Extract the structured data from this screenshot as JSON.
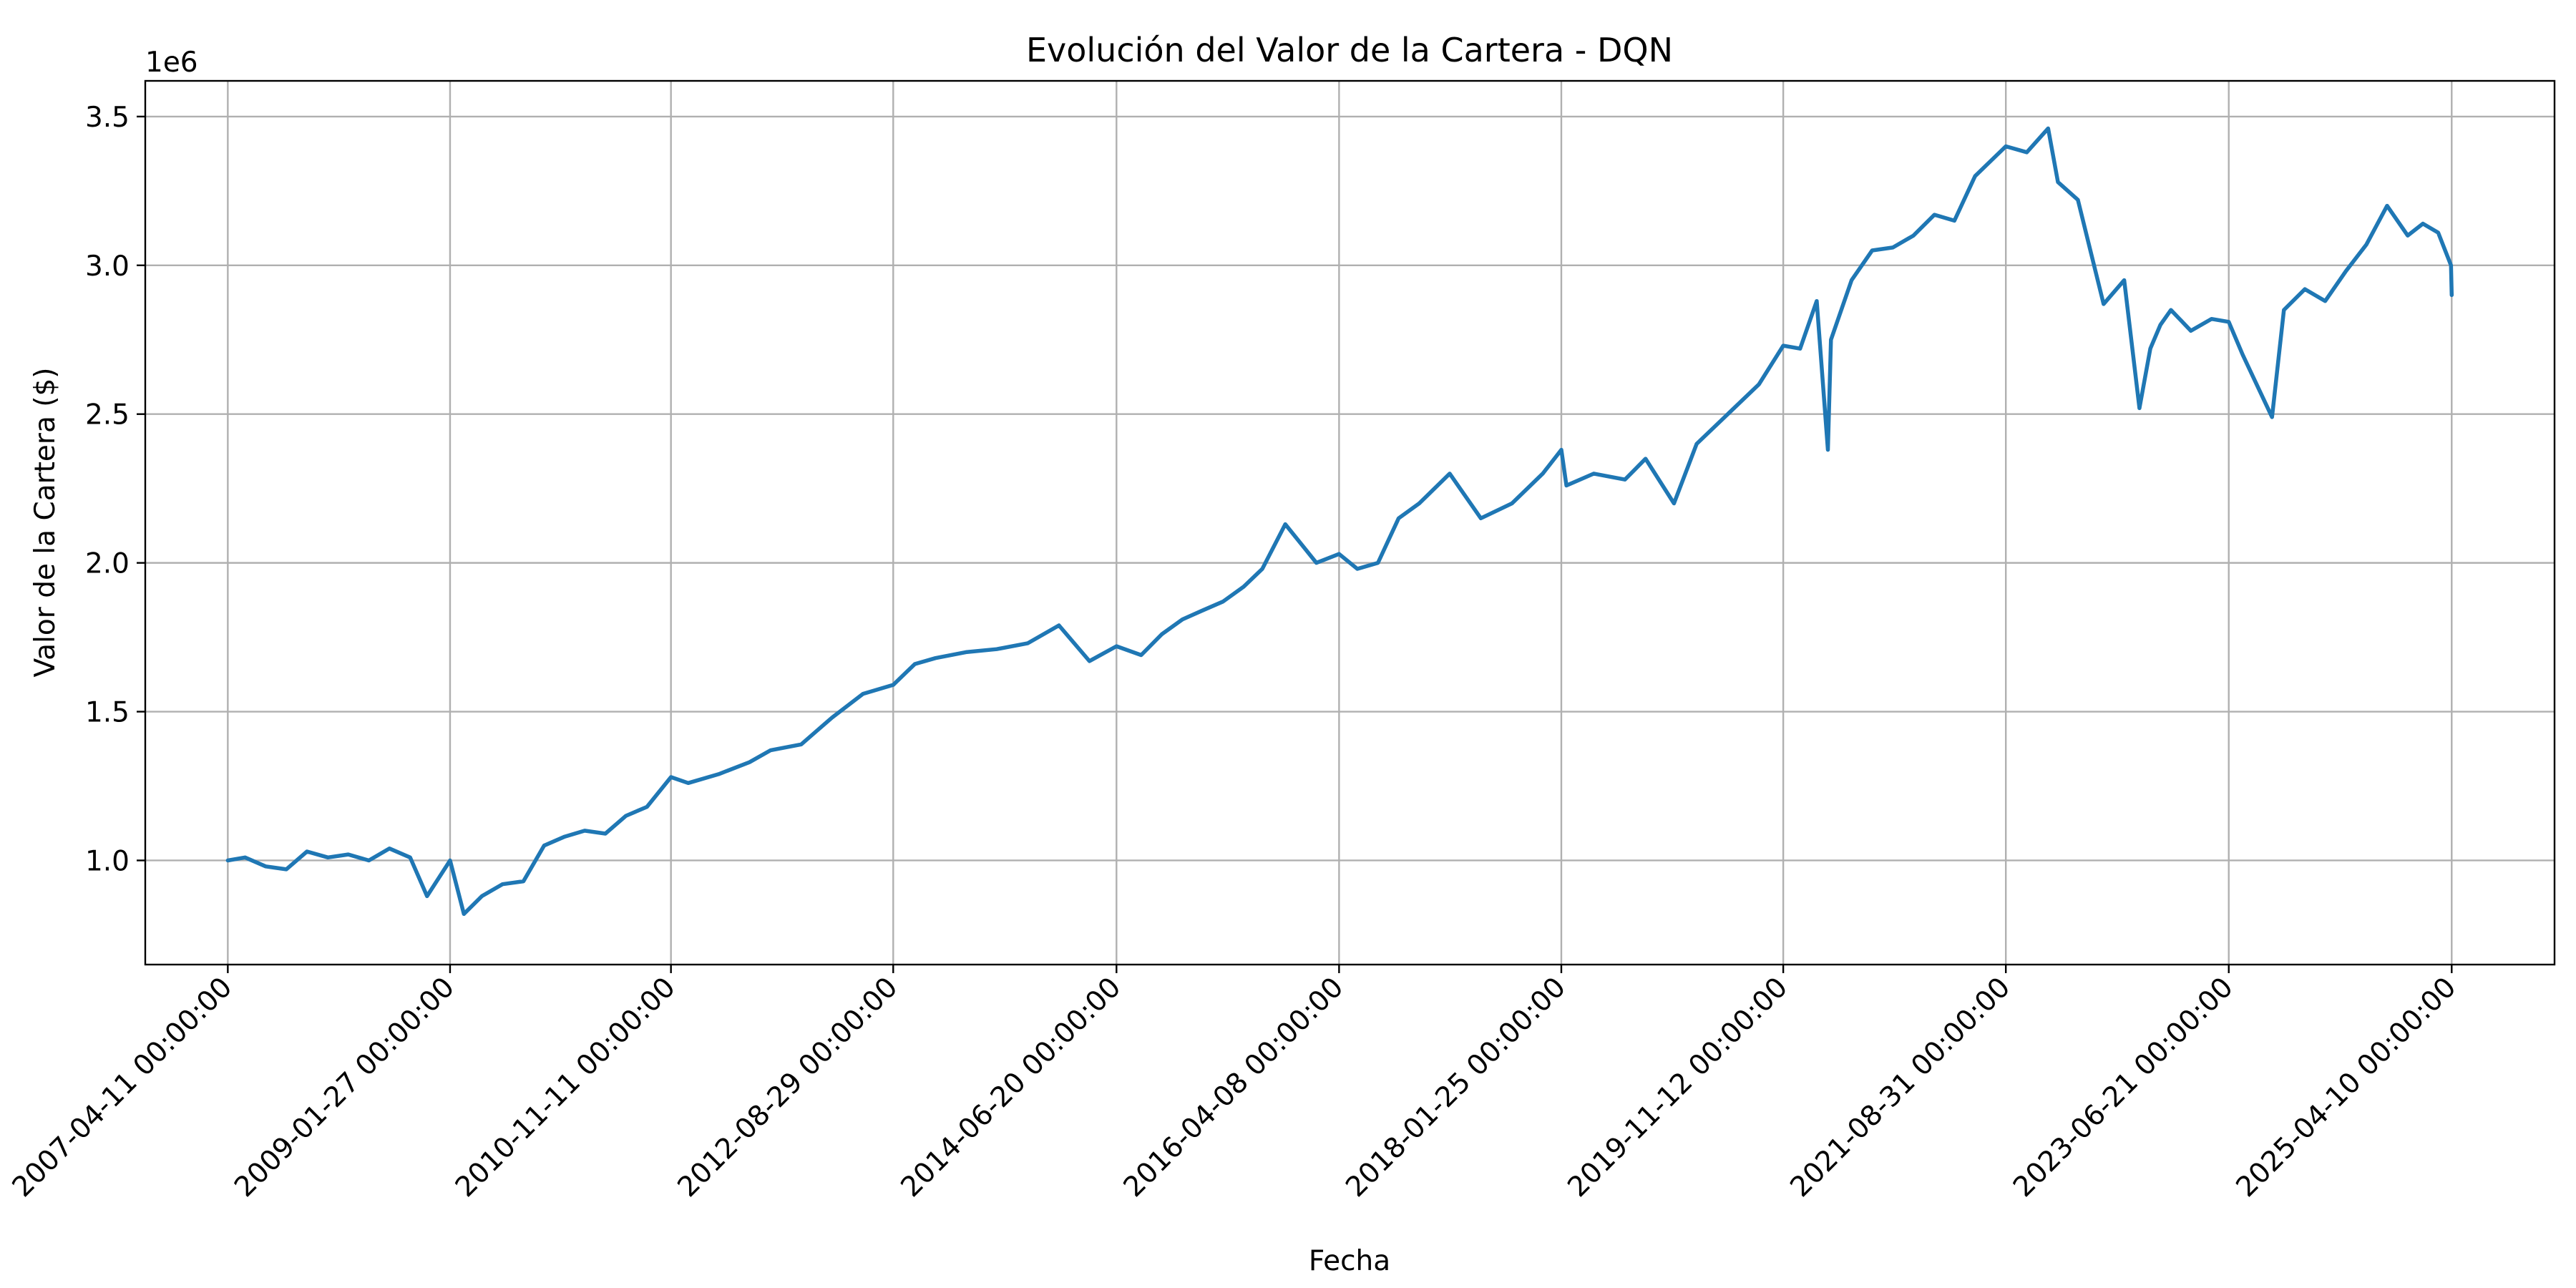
{
  "chart_data": {
    "type": "line",
    "title": "Evolución del Valor de la Cartera - DQN",
    "xlabel": "Fecha",
    "ylabel": "Valor de la Cartera ($)",
    "y_offset_text": "1e6",
    "ylim": [
      650000,
      3620000
    ],
    "y_ticks": [
      1000000,
      1500000,
      2000000,
      2500000,
      3000000,
      3500000
    ],
    "y_tick_labels": [
      "1.0",
      "1.5",
      "2.0",
      "2.5",
      "3.0",
      "3.5"
    ],
    "x_ticks": [
      "2007-04-11 00:00:00",
      "2009-01-27 00:00:00",
      "2010-11-11 00:00:00",
      "2012-08-29 00:00:00",
      "2014-06-20 00:00:00",
      "2016-04-08 00:00:00",
      "2018-01-25 00:00:00",
      "2019-11-12 00:00:00",
      "2021-08-31 00:00:00",
      "2023-06-21 00:00:00",
      "2025-04-10 00:00:00"
    ],
    "x_range": [
      "2006-08-10",
      "2026-02-08"
    ],
    "grid": true,
    "colors": {
      "series": "#1f77b4",
      "grid": "#b0b0b0"
    },
    "series": [
      {
        "x": [
          "2007-04-11",
          "2007-06-01",
          "2007-08-01",
          "2007-10-01",
          "2007-12-01",
          "2008-02-01",
          "2008-04-01",
          "2008-06-01",
          "2008-08-01",
          "2008-10-01",
          "2008-11-20",
          "2009-01-27",
          "2009-03-09",
          "2009-05-01",
          "2009-07-01",
          "2009-09-01",
          "2009-11-01",
          "2010-01-01",
          "2010-03-01",
          "2010-05-01",
          "2010-07-01",
          "2010-09-01",
          "2010-11-11",
          "2011-01-01",
          "2011-04-01",
          "2011-07-01",
          "2011-09-01",
          "2011-12-01",
          "2012-03-01",
          "2012-06-01",
          "2012-08-29",
          "2012-11-01",
          "2013-01-01",
          "2013-04-01",
          "2013-07-01",
          "2013-10-01",
          "2014-01-01",
          "2014-04-01",
          "2014-06-20",
          "2014-09-01",
          "2014-11-01",
          "2015-01-01",
          "2015-03-01",
          "2015-05-01",
          "2015-07-01",
          "2015-08-25",
          "2015-11-01",
          "2016-02-01",
          "2016-04-08",
          "2016-06-01",
          "2016-08-01",
          "2016-10-01",
          "2016-12-01",
          "2017-03-01",
          "2017-06-01",
          "2017-09-01",
          "2017-12-01",
          "2018-01-25",
          "2018-02-09",
          "2018-05-01",
          "2018-08-01",
          "2018-10-01",
          "2018-12-24",
          "2019-03-01",
          "2019-06-01",
          "2019-09-01",
          "2019-11-12",
          "2020-01-01",
          "2020-02-19",
          "2020-03-23",
          "2020-04-01",
          "2020-06-01",
          "2020-08-01",
          "2020-10-01",
          "2020-12-01",
          "2021-02-01",
          "2021-04-01",
          "2021-06-01",
          "2021-08-31",
          "2021-11-01",
          "2022-01-03",
          "2022-02-01",
          "2022-04-01",
          "2022-06-16",
          "2022-08-16",
          "2022-09-30",
          "2022-11-01",
          "2022-12-01",
          "2023-01-01",
          "2023-03-01",
          "2023-05-01",
          "2023-06-21",
          "2023-08-01",
          "2023-10-27",
          "2023-12-01",
          "2024-02-01",
          "2024-04-01",
          "2024-06-01",
          "2024-08-01",
          "2024-10-01",
          "2024-12-01",
          "2025-01-15",
          "2025-03-01",
          "2025-04-08",
          "2025-04-10"
        ],
        "values": [
          1000000,
          1010000,
          980000,
          970000,
          1030000,
          1010000,
          1020000,
          1000000,
          1040000,
          1010000,
          880000,
          1000000,
          820000,
          880000,
          920000,
          930000,
          1050000,
          1080000,
          1100000,
          1090000,
          1150000,
          1180000,
          1280000,
          1260000,
          1290000,
          1330000,
          1370000,
          1390000,
          1480000,
          1560000,
          1590000,
          1660000,
          1680000,
          1700000,
          1710000,
          1730000,
          1790000,
          1670000,
          1720000,
          1690000,
          1760000,
          1810000,
          1840000,
          1870000,
          1920000,
          1980000,
          2130000,
          2000000,
          2030000,
          1980000,
          2000000,
          2150000,
          2200000,
          2300000,
          2150000,
          2200000,
          2300000,
          2380000,
          2260000,
          2300000,
          2280000,
          2350000,
          2200000,
          2400000,
          2500000,
          2600000,
          2730000,
          2720000,
          2880000,
          2380000,
          2750000,
          2950000,
          3050000,
          3060000,
          3100000,
          3170000,
          3150000,
          3300000,
          3400000,
          3380000,
          3460000,
          3280000,
          3220000,
          2870000,
          2950000,
          2520000,
          2720000,
          2800000,
          2850000,
          2780000,
          2820000,
          2810000,
          2700000,
          2490000,
          2850000,
          2920000,
          2880000,
          2980000,
          3070000,
          3200000,
          3100000,
          3140000,
          3110000,
          3000000,
          2900000
        ]
      }
    ]
  }
}
